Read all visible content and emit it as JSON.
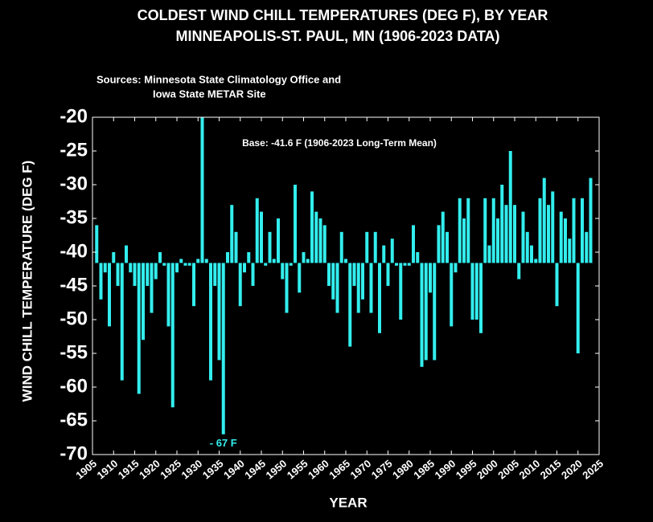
{
  "chart_data": {
    "type": "bar",
    "title": "COLDEST WIND CHILL TEMPERATURES (DEG F), BY YEAR",
    "subtitle": "MINNEAPOLIS-ST. PAUL, MN  (1906-2023 DATA)",
    "sources": [
      "Sources: Minnesota State Climatology Office and",
      "Iowa State METAR Site"
    ],
    "base_annotation": "Base: -41.6 F (1906-2023 Long-Term Mean)",
    "min_annotation": "- 67 F",
    "base": -41.6,
    "xlabel": "YEAR",
    "ylabel": "WIND CHILL TEMPERATURE (DEG F)",
    "color": "#33eeee",
    "x": [
      1906,
      1907,
      1908,
      1909,
      1910,
      1911,
      1912,
      1913,
      1914,
      1915,
      1916,
      1917,
      1918,
      1919,
      1920,
      1921,
      1922,
      1923,
      1924,
      1925,
      1926,
      1927,
      1928,
      1929,
      1930,
      1931,
      1932,
      1933,
      1934,
      1935,
      1936,
      1937,
      1938,
      1939,
      1940,
      1941,
      1942,
      1943,
      1944,
      1945,
      1946,
      1947,
      1948,
      1949,
      1950,
      1951,
      1952,
      1953,
      1954,
      1955,
      1956,
      1957,
      1958,
      1959,
      1960,
      1961,
      1962,
      1963,
      1964,
      1965,
      1966,
      1967,
      1968,
      1969,
      1970,
      1971,
      1972,
      1973,
      1974,
      1975,
      1976,
      1977,
      1978,
      1979,
      1980,
      1981,
      1982,
      1983,
      1984,
      1985,
      1986,
      1987,
      1988,
      1989,
      1990,
      1991,
      1992,
      1993,
      1994,
      1995,
      1996,
      1997,
      1998,
      1999,
      2000,
      2001,
      2002,
      2003,
      2004,
      2005,
      2006,
      2007,
      2008,
      2009,
      2010,
      2011,
      2012,
      2013,
      2014,
      2015,
      2016,
      2017,
      2018,
      2019,
      2020,
      2021,
      2022,
      2023
    ],
    "values": [
      -36,
      -47,
      -43,
      -51,
      -40,
      -45,
      -59,
      -39,
      -43,
      -45,
      -61,
      -53,
      -45,
      -49,
      -44,
      -40,
      -42,
      -51,
      -63,
      -43,
      -41,
      -42,
      -42,
      -48,
      -41,
      -20,
      -41,
      -59,
      -45,
      -56,
      -67,
      -40,
      -33,
      -37,
      -48,
      -43,
      -40,
      -45,
      -32,
      -34,
      -42,
      -37,
      -41,
      -35,
      -44,
      -49,
      -42,
      -30,
      -46,
      -40,
      -41,
      -31,
      -34,
      -35,
      -36,
      -45,
      -47,
      -49,
      -37,
      -41,
      -54,
      -45,
      -49,
      -47,
      -37,
      -49,
      -37,
      -52,
      -39,
      -45,
      -38,
      -42,
      -50,
      -42,
      -42,
      -36,
      -40,
      -57,
      -56,
      -46,
      -56,
      -36,
      -34,
      -37,
      -51,
      -43,
      -32,
      -35,
      -32,
      -50,
      -50,
      -52,
      -32,
      -39,
      -32,
      -35,
      -30,
      -33,
      -25,
      -33,
      -44,
      -34,
      -37,
      -39,
      -41,
      -32,
      -29,
      -33,
      -31,
      -48,
      -34,
      -35,
      -38,
      -32,
      -55,
      -32,
      -37,
      -29
    ],
    "xlim": [
      1905,
      2025
    ],
    "xticks": [
      1905,
      1910,
      1915,
      1920,
      1925,
      1930,
      1935,
      1940,
      1945,
      1950,
      1955,
      1960,
      1965,
      1970,
      1975,
      1980,
      1985,
      1990,
      1995,
      2000,
      2005,
      2010,
      2015,
      2020,
      2025
    ],
    "ylim": [
      -70,
      -20
    ],
    "yticks": [
      -20,
      -25,
      -30,
      -35,
      -40,
      -45,
      -50,
      -55,
      -60,
      -65,
      -70
    ]
  }
}
